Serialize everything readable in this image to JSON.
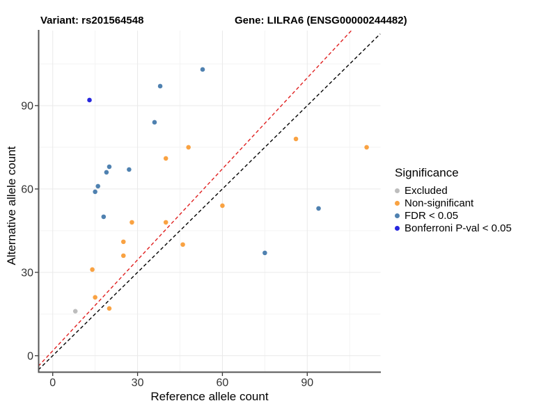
{
  "header": {
    "variant_title": "Variant: rs201564548",
    "gene_title": "Gene: LILRA6 (ENSG00000244482)"
  },
  "chart_data": {
    "type": "scatter",
    "xlabel": "Reference allele count",
    "ylabel": "Alternative allele count",
    "x_ticks": [
      0,
      30,
      60,
      90
    ],
    "y_ticks": [
      0,
      30,
      60,
      90
    ],
    "x_minor_gridlines": [
      15,
      45,
      75,
      105
    ],
    "y_minor_gridlines": [
      15,
      45,
      75,
      105
    ],
    "xlim": [
      -5.1,
      115.9
    ],
    "ylim": [
      -5.8,
      117
    ],
    "grid": true,
    "legend": {
      "title": "Significance",
      "position": "right"
    },
    "series": [
      {
        "name": "Excluded",
        "color": "#BDBDBD",
        "points": [
          [
            8,
            16
          ]
        ]
      },
      {
        "name": "Non-significant",
        "color": "#F9A242",
        "points": [
          [
            14,
            31
          ],
          [
            15,
            21
          ],
          [
            20,
            17
          ],
          [
            25,
            36
          ],
          [
            25,
            41
          ],
          [
            28,
            48
          ],
          [
            40,
            48
          ],
          [
            40,
            71
          ],
          [
            46,
            40
          ],
          [
            48,
            75
          ],
          [
            60,
            54
          ],
          [
            86,
            78
          ],
          [
            111,
            75
          ]
        ]
      },
      {
        "name": "FDR < 0.05",
        "color": "#4F81B0",
        "points": [
          [
            15,
            59
          ],
          [
            16,
            61
          ],
          [
            18,
            50
          ],
          [
            19,
            66
          ],
          [
            20,
            68
          ],
          [
            27,
            67
          ],
          [
            36,
            84
          ],
          [
            38,
            97
          ],
          [
            53,
            103
          ],
          [
            75,
            37
          ],
          [
            94,
            53
          ]
        ]
      },
      {
        "name": "Bonferroni P-val < 0.05",
        "color": "#2727DE",
        "points": [
          [
            13,
            92
          ]
        ]
      }
    ],
    "lines": [
      {
        "name": "identity-line",
        "color": "#000000",
        "style": "dashed",
        "points": [
          [
            -5.1,
            -5.1
          ],
          [
            115.8,
            115.8
          ]
        ]
      },
      {
        "name": "expected-ratio-line",
        "color": "#E01F1F",
        "style": "dashed",
        "points": [
          [
            -5.1,
            -3.8
          ],
          [
            105.6,
            117.0
          ]
        ]
      }
    ]
  }
}
